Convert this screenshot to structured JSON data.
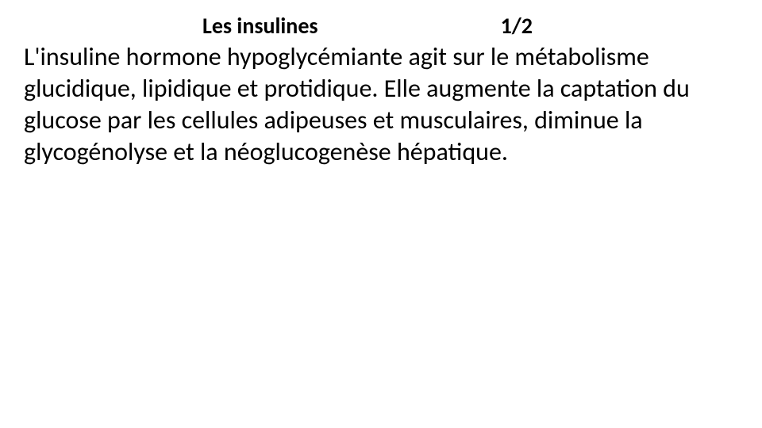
{
  "header": {
    "title": "Les insulines",
    "page_number": "1/2"
  },
  "body": {
    "paragraph": "L'insuline hormone hypoglycémiante  agit sur le métabolisme glucidique, lipidique et protidique. Elle augmente la captation du glucose par les cellules adipeuses et musculaires, diminue la glycogénolyse et la néoglucogenèse hépatique."
  },
  "styling": {
    "background_color": "#ffffff",
    "text_color": "#000000",
    "title_fontsize": 28,
    "body_fontsize": 32,
    "font_family": "Calibri"
  }
}
